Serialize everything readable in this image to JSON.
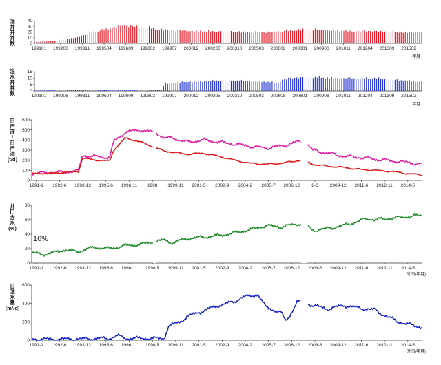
{
  "chart_data": [
    {
      "type": "bar",
      "ylabel_lines": [
        "油",
        "井",
        "开",
        "井",
        "数"
      ],
      "ylim": [
        0,
        40
      ],
      "yticks": [
        "0",
        "10",
        "20",
        "30",
        "40"
      ],
      "xticks": [
        "199101",
        "199206",
        "199311",
        "199504",
        "199609",
        "199802",
        "199907",
        "200012",
        "200205",
        "200310",
        "200503",
        "200608",
        "200801",
        "200906",
        "201011",
        "201204",
        "201309",
        "201502"
      ],
      "unit": "年月",
      "color": "#e0101e",
      "profile": [
        [
          0,
          3
        ],
        [
          4,
          4
        ],
        [
          6,
          6
        ],
        [
          8,
          8
        ],
        [
          10,
          10
        ],
        [
          12,
          14
        ],
        [
          14,
          20
        ],
        [
          16,
          24
        ],
        [
          18,
          27
        ],
        [
          20,
          32
        ],
        [
          22,
          34
        ],
        [
          24,
          35
        ],
        [
          26,
          34
        ],
        [
          28,
          32
        ],
        [
          30,
          30
        ],
        [
          32,
          28
        ],
        [
          34,
          27
        ],
        [
          36,
          26
        ],
        [
          40,
          25
        ],
        [
          44,
          24
        ],
        [
          48,
          24
        ],
        [
          52,
          23
        ],
        [
          56,
          22
        ],
        [
          60,
          22
        ],
        [
          64,
          24
        ],
        [
          68,
          27
        ],
        [
          70,
          28
        ],
        [
          72,
          27
        ],
        [
          76,
          26
        ],
        [
          80,
          25
        ],
        [
          84,
          24
        ],
        [
          88,
          24
        ],
        [
          92,
          23
        ],
        [
          96,
          22
        ],
        [
          100,
          22
        ]
      ]
    },
    {
      "type": "bar",
      "ylabel_lines": [
        "注",
        "水",
        "开",
        "井",
        "数"
      ],
      "ylim": [
        0,
        15
      ],
      "yticks": [
        "0",
        "5",
        "10",
        "15"
      ],
      "xticks": [
        "199101",
        "199206",
        "199311",
        "199504",
        "199609",
        "199802",
        "199907",
        "200012",
        "200205",
        "200310",
        "200503",
        "200608",
        "200801",
        "200906",
        "201011",
        "201204",
        "201309",
        "201502"
      ],
      "unit": "年月",
      "color": "#1f2fd0",
      "profile": [
        [
          0,
          0.5
        ],
        [
          20,
          0.6
        ],
        [
          30,
          0.5
        ],
        [
          33,
          0.6
        ],
        [
          33.5,
          6
        ],
        [
          36,
          7.5
        ],
        [
          40,
          8
        ],
        [
          44,
          8.5
        ],
        [
          48,
          9
        ],
        [
          52,
          9
        ],
        [
          56,
          8.5
        ],
        [
          60,
          8
        ],
        [
          63,
          7
        ],
        [
          64,
          10
        ],
        [
          66,
          11
        ],
        [
          68,
          11.5
        ],
        [
          72,
          12
        ],
        [
          76,
          11.5
        ],
        [
          80,
          11
        ],
        [
          84,
          11
        ],
        [
          88,
          11
        ],
        [
          92,
          10
        ],
        [
          96,
          9
        ],
        [
          100,
          8.5
        ]
      ]
    },
    {
      "type": "line",
      "ylabel_lines": [
        "日",
        "产",
        "液",
        "/",
        "日",
        "产",
        "油",
        "(t/d)"
      ],
      "ylim": [
        0,
        600
      ],
      "yticks": [
        "0",
        "100",
        "200",
        "300",
        "400",
        "500",
        "600"
      ],
      "xticks": [
        "1991-1",
        "1992-6",
        "1993-12",
        "1995-6",
        "1996-11",
        "1998",
        "1999-11",
        "2001-5",
        "2002-9",
        "2004-2",
        "2005-7",
        "2006-12",
        "8-6",
        "2009-12",
        "2011-6",
        "2012-11",
        "2014-5"
      ],
      "series": [
        {
          "color": "#e01da0",
          "noise": 22,
          "profile": [
            [
              0,
              70
            ],
            [
              7,
              80
            ],
            [
              12,
              95
            ],
            [
              13,
              250
            ],
            [
              18,
              230
            ],
            [
              20,
              230
            ],
            [
              21,
              380
            ],
            [
              24,
              480
            ],
            [
              28,
              500
            ],
            [
              32,
              470
            ],
            [
              34,
              420
            ],
            [
              36,
              420
            ],
            [
              40,
              380
            ],
            [
              44,
              400
            ],
            [
              48,
              380
            ],
            [
              52,
              360
            ],
            [
              56,
              340
            ],
            [
              60,
              320
            ],
            [
              64,
              340
            ],
            [
              68,
              380
            ],
            [
              70,
              390
            ],
            [
              72,
              300
            ],
            [
              76,
              270
            ],
            [
              80,
              240
            ],
            [
              84,
              230
            ],
            [
              88,
              210
            ],
            [
              92,
              195
            ],
            [
              96,
              180
            ],
            [
              100,
              160
            ]
          ]
        },
        {
          "color": "#dc1c1c",
          "noise": 10,
          "profile": [
            [
              0,
              65
            ],
            [
              7,
              75
            ],
            [
              12,
              90
            ],
            [
              13,
              220
            ],
            [
              18,
              195
            ],
            [
              20,
              195
            ],
            [
              21,
              300
            ],
            [
              24,
              420
            ],
            [
              28,
              380
            ],
            [
              32,
              320
            ],
            [
              34,
              290
            ],
            [
              36,
              280
            ],
            [
              40,
              260
            ],
            [
              44,
              270
            ],
            [
              48,
              240
            ],
            [
              52,
              200
            ],
            [
              56,
              170
            ],
            [
              60,
              160
            ],
            [
              64,
              170
            ],
            [
              68,
              195
            ],
            [
              70,
              200
            ],
            [
              72,
              160
            ],
            [
              76,
              140
            ],
            [
              80,
              130
            ],
            [
              84,
              110
            ],
            [
              88,
              100
            ],
            [
              92,
              90
            ],
            [
              96,
              70
            ],
            [
              100,
              55
            ]
          ]
        }
      ]
    },
    {
      "type": "line",
      "ylabel_lines": [
        "井",
        "口",
        "含",
        "水",
        "(%)"
      ],
      "ylim": [
        0,
        80
      ],
      "yticks": [
        "0",
        "20",
        "40",
        "60",
        "80"
      ],
      "xticks": [
        "1991-1",
        "1992-6",
        "1993-12",
        "1995-6",
        "1996-11",
        "1998-5",
        "1999-11",
        "2001-5",
        "2002-9",
        "2004-2",
        "2005-7",
        "2006-12",
        "2008-6",
        "2009-12",
        "2011-6",
        "2012-11",
        "2014-5"
      ],
      "annotation": "16%",
      "unit": "时间(年月)",
      "series": [
        {
          "color": "#1f8a2a",
          "noise": 3,
          "profile": [
            [
              0,
              14
            ],
            [
              4,
              12
            ],
            [
              8,
              18
            ],
            [
              12,
              16
            ],
            [
              16,
              22
            ],
            [
              20,
              20
            ],
            [
              24,
              24
            ],
            [
              28,
              26
            ],
            [
              32,
              30
            ],
            [
              34,
              32
            ],
            [
              36,
              28
            ],
            [
              40,
              34
            ],
            [
              44,
              36
            ],
            [
              48,
              38
            ],
            [
              52,
              42
            ],
            [
              56,
              46
            ],
            [
              60,
              52
            ],
            [
              64,
              50
            ],
            [
              68,
              54
            ],
            [
              70,
              56
            ],
            [
              72,
              45
            ],
            [
              76,
              48
            ],
            [
              80,
              52
            ],
            [
              84,
              58
            ],
            [
              86,
              62
            ],
            [
              88,
              60
            ],
            [
              92,
              62
            ],
            [
              96,
              64
            ],
            [
              100,
              66
            ]
          ]
        }
      ]
    },
    {
      "type": "line",
      "ylabel_lines": [
        "日",
        "注",
        "水",
        "量",
        "(m³/d)"
      ],
      "ylim": [
        0,
        600
      ],
      "yticks": [
        "0",
        "200",
        "400",
        "600"
      ],
      "xticks": [
        "1991-1",
        "1992-6",
        "1993-12",
        "1995-6",
        "1996-11",
        "1998-5",
        "1999-11",
        "2001-5",
        "2002-9",
        "2004-2",
        "2005-7",
        "2006-12",
        "2008-6",
        "2009-12",
        "2011-6",
        "2012-11",
        "2014-5"
      ],
      "unit": "时间(年月)",
      "series": [
        {
          "color": "#1424c8",
          "noise": 25,
          "profile": [
            [
              0,
              10
            ],
            [
              10,
              12
            ],
            [
              20,
              20
            ],
            [
              22,
              50
            ],
            [
              24,
              20
            ],
            [
              34,
              20
            ],
            [
              35,
              150
            ],
            [
              38,
              200
            ],
            [
              40,
              260
            ],
            [
              44,
              320
            ],
            [
              48,
              380
            ],
            [
              52,
              420
            ],
            [
              54,
              470
            ],
            [
              56,
              480
            ],
            [
              58,
              500
            ],
            [
              60,
              360
            ],
            [
              62,
              330
            ],
            [
              64,
              300
            ],
            [
              65,
              210
            ],
            [
              66,
              250
            ],
            [
              68,
              420
            ],
            [
              70,
              410
            ],
            [
              72,
              380
            ],
            [
              76,
              340
            ],
            [
              80,
              380
            ],
            [
              84,
              350
            ],
            [
              88,
              330
            ],
            [
              90,
              280
            ],
            [
              92,
              240
            ],
            [
              94,
              200
            ],
            [
              96,
              180
            ],
            [
              100,
              140
            ]
          ]
        }
      ]
    }
  ]
}
